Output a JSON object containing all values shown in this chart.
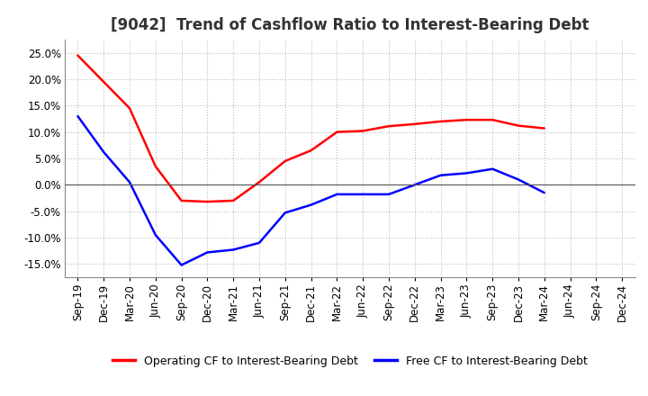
{
  "title": "[9042]  Trend of Cashflow Ratio to Interest-Bearing Debt",
  "x_labels": [
    "Sep-19",
    "Dec-19",
    "Mar-20",
    "Jun-20",
    "Sep-20",
    "Dec-20",
    "Mar-21",
    "Jun-21",
    "Sep-21",
    "Dec-21",
    "Mar-22",
    "Jun-22",
    "Sep-22",
    "Dec-22",
    "Mar-23",
    "Jun-23",
    "Sep-23",
    "Dec-23",
    "Mar-24",
    "Jun-24",
    "Sep-24",
    "Dec-24"
  ],
  "operating_cf": [
    0.245,
    0.195,
    0.145,
    0.035,
    -0.03,
    -0.032,
    -0.03,
    0.005,
    0.045,
    0.065,
    0.1,
    0.102,
    0.111,
    0.115,
    0.12,
    0.123,
    0.123,
    0.112,
    0.107,
    null,
    null,
    null
  ],
  "free_cf": [
    0.13,
    0.062,
    0.005,
    -0.095,
    -0.152,
    -0.128,
    -0.123,
    -0.11,
    -0.053,
    -0.038,
    -0.018,
    -0.018,
    -0.018,
    0.0,
    0.018,
    0.022,
    0.03,
    0.01,
    -0.015,
    null,
    null,
    null
  ],
  "operating_color": "#ff0000",
  "free_color": "#0000ff",
  "ylim": [
    -0.175,
    0.275
  ],
  "yticks": [
    -0.15,
    -0.1,
    -0.05,
    0.0,
    0.05,
    0.1,
    0.15,
    0.2,
    0.25
  ],
  "background_color": "#ffffff",
  "plot_bg_color": "#ffffff",
  "grid_color": "#bbbbbb",
  "legend_operating": "Operating CF to Interest-Bearing Debt",
  "legend_free": "Free CF to Interest-Bearing Debt",
  "title_fontsize": 12,
  "axis_fontsize": 8.5,
  "legend_fontsize": 9,
  "line_width": 1.8
}
